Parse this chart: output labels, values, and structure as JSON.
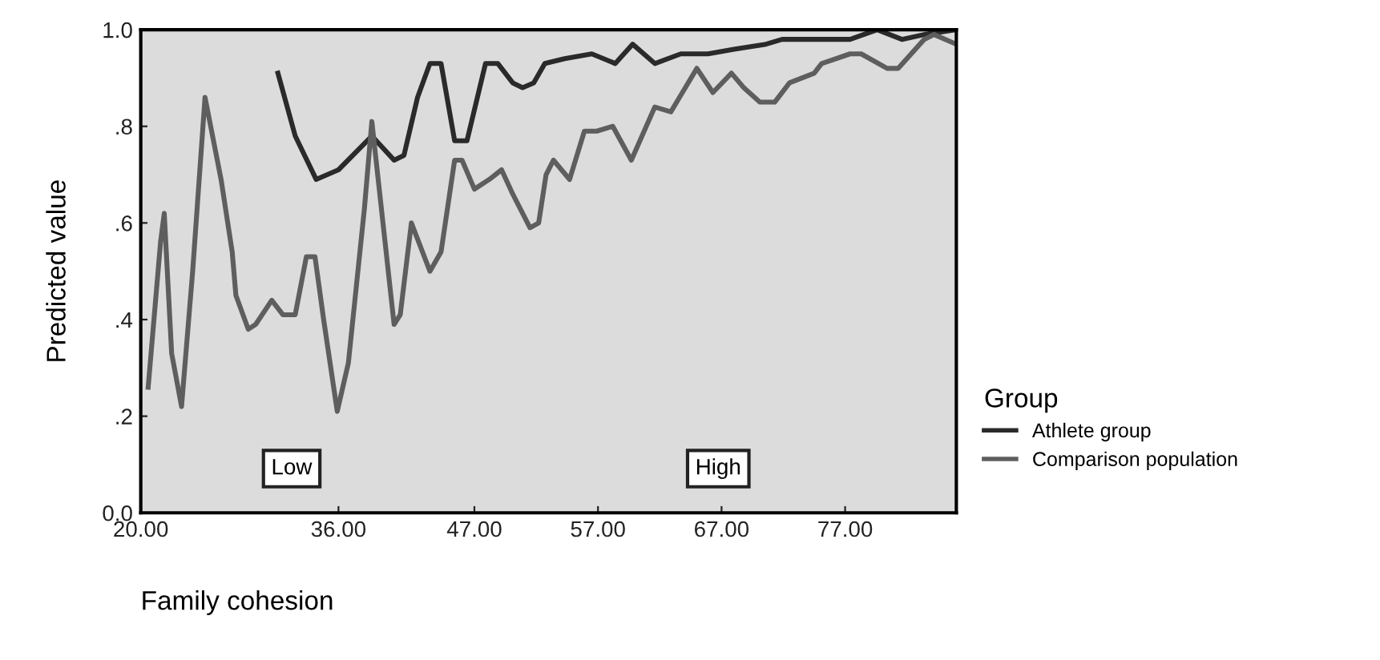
{
  "chart_data": {
    "type": "line",
    "xlabel": "Family cohesion",
    "ylabel": "Predicted value",
    "legend_title": "Group",
    "annotations": [
      "Low",
      "High"
    ],
    "xlim": [
      20,
      86
    ],
    "xticks": [
      {
        "value": 20,
        "label": "20.00"
      },
      {
        "value": 36,
        "label": "36.00"
      },
      {
        "value": 47,
        "label": "47.00"
      },
      {
        "value": 57,
        "label": "57.00"
      },
      {
        "value": 67,
        "label": "67.00"
      },
      {
        "value": 77,
        "label": "77.00"
      }
    ],
    "ylim": [
      0,
      1
    ],
    "yticks": [
      {
        "value": 0,
        "label": "0.0"
      },
      {
        "value": 0.2,
        "label": ".2"
      },
      {
        "value": 0.4,
        "label": ".4"
      },
      {
        "value": 0.6,
        "label": ".6"
      },
      {
        "value": 0.8,
        "label": ".8"
      },
      {
        "value": 1,
        "label": "1.0"
      }
    ],
    "grid": false,
    "legend": "right",
    "marker": "none",
    "line_style": "solid",
    "series": [
      {
        "name": "Athlete group",
        "color": "#2a2a2a",
        "x": [
          31.1,
          32.5,
          34.2,
          36.0,
          38.7,
          40.5,
          41.3,
          42.4,
          43.4,
          44.3,
          45.4,
          46.4,
          47.9,
          48.9,
          50.1,
          50.9,
          51.8,
          52.7,
          54.3,
          56.5,
          58.4,
          59.8,
          61.6,
          63.7,
          65.9,
          68.1,
          70.6,
          71.9,
          77.4,
          79.6,
          81.6,
          83.4,
          86.0
        ],
        "values": [
          0.91,
          0.78,
          0.69,
          0.71,
          0.78,
          0.73,
          0.74,
          0.86,
          0.93,
          0.93,
          0.77,
          0.77,
          0.93,
          0.93,
          0.89,
          0.88,
          0.89,
          0.93,
          0.94,
          0.95,
          0.93,
          0.97,
          0.93,
          0.95,
          0.95,
          0.96,
          0.97,
          0.98,
          0.98,
          1.0,
          0.98,
          0.99,
          1.0
        ]
      },
      {
        "name": "Comparison population",
        "color": "#5e5e5e",
        "x": [
          20.6,
          21.6,
          21.9,
          22.5,
          23.3,
          24.2,
          25.2,
          26.5,
          27.4,
          27.7,
          28.7,
          29.3,
          30.6,
          31.5,
          32.5,
          33.4,
          34.1,
          34.8,
          35.9,
          36.8,
          38.1,
          38.7,
          39.3,
          40.5,
          41.0,
          41.9,
          43.4,
          44.3,
          45.4,
          46.0,
          47.0,
          48.2,
          49.2,
          50.1,
          51.5,
          52.2,
          52.8,
          53.4,
          54.7,
          55.9,
          56.9,
          58.2,
          59.7,
          61.6,
          62.9,
          63.6,
          65.0,
          66.3,
          67.8,
          68.8,
          70.1,
          71.3,
          72.5,
          74.5,
          75.1,
          77.4,
          78.3,
          80.4,
          81.3,
          83.4,
          84.2,
          86.0
        ],
        "values": [
          0.26,
          0.56,
          0.62,
          0.33,
          0.22,
          0.5,
          0.86,
          0.69,
          0.54,
          0.45,
          0.38,
          0.39,
          0.44,
          0.41,
          0.41,
          0.53,
          0.53,
          0.4,
          0.21,
          0.31,
          0.63,
          0.81,
          0.67,
          0.39,
          0.41,
          0.6,
          0.5,
          0.54,
          0.73,
          0.73,
          0.67,
          0.69,
          0.71,
          0.66,
          0.59,
          0.6,
          0.7,
          0.73,
          0.69,
          0.79,
          0.79,
          0.8,
          0.73,
          0.84,
          0.83,
          0.86,
          0.92,
          0.87,
          0.91,
          0.88,
          0.85,
          0.85,
          0.89,
          0.91,
          0.93,
          0.95,
          0.95,
          0.92,
          0.92,
          0.98,
          0.99,
          0.97
        ]
      }
    ]
  }
}
